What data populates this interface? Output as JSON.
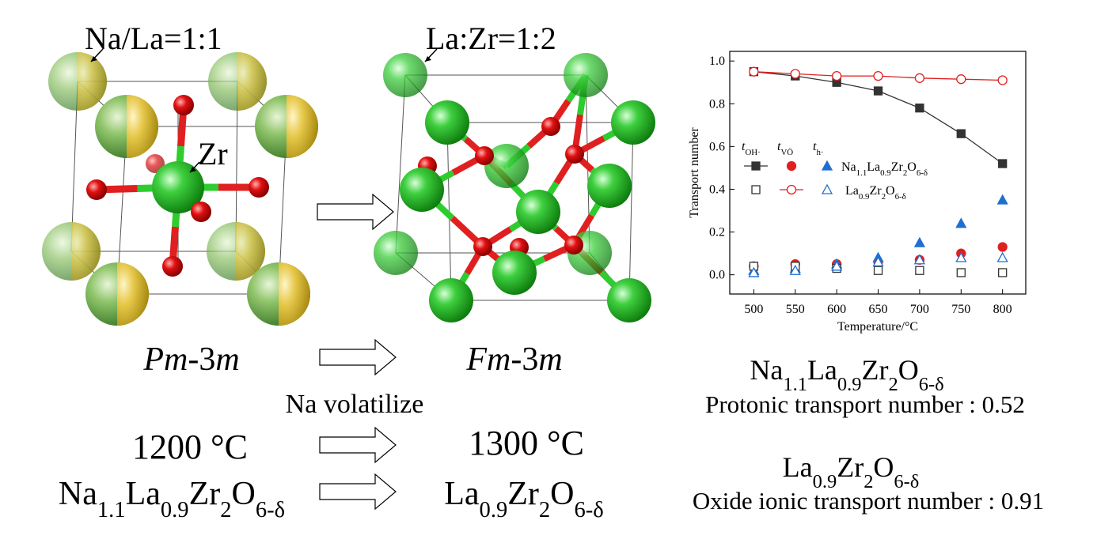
{
  "structures": {
    "left_label": "Na/La=1:1",
    "center_label": "Zr",
    "right_label": "La:Zr=1:2",
    "left_group": [
      "Pm",
      "-3",
      "m"
    ],
    "right_group": [
      "Fm",
      "-3",
      "m"
    ]
  },
  "process": {
    "note": "Na volatilize",
    "temp_before": "1200 °C",
    "temp_after": "1300 °C",
    "formula_before": [
      "Na",
      "1.1",
      "La",
      "0.9",
      "Zr",
      "2",
      "O",
      "6-δ"
    ],
    "formula_after": [
      "La",
      "0.9",
      "Zr",
      "2",
      "O",
      "6-δ"
    ]
  },
  "results": [
    {
      "formula": [
        "Na",
        "1.1",
        "La",
        "0.9",
        "Zr",
        "2",
        "O",
        "6-δ"
      ],
      "text": "Protonic transport number : 0.52"
    },
    {
      "formula": [
        "La",
        "0.9",
        "Zr",
        "2",
        "O",
        "6-δ"
      ],
      "text": "Oxide ionic transport number : 0.91"
    }
  ],
  "chart_data": {
    "type": "scatter",
    "x_label": "Temperature/°C",
    "y_label": "Transport number",
    "x": [
      500,
      550,
      600,
      650,
      700,
      750,
      800
    ],
    "xlim": [
      471,
      828
    ],
    "ylim": [
      -0.09,
      1.045
    ],
    "xticks": [
      500,
      550,
      600,
      650,
      700,
      750,
      800
    ],
    "yticks": [
      {
        "value": 0,
        "label": "0.0"
      },
      {
        "value": 0.2,
        "label": "0.2"
      },
      {
        "value": 0.4,
        "label": "0.4"
      },
      {
        "value": 0.6,
        "label": "0.6"
      },
      {
        "value": 0.8,
        "label": "0.8"
      },
      {
        "value": 1,
        "label": "1.0"
      }
    ],
    "legend": {
      "columns": [
        [
          "t",
          "OH·"
        ],
        [
          "t",
          "VÖ"
        ],
        [
          "t",
          "h·"
        ]
      ],
      "rows": [
        [
          "Na",
          "1.1",
          "La",
          "0.9",
          "Zr",
          "2",
          "O",
          "6-δ"
        ],
        [
          "La",
          "0.9",
          "Zr",
          "2",
          "O",
          "6-δ"
        ]
      ]
    },
    "series": [
      {
        "color": "#333333",
        "marker": "square",
        "filled": true,
        "line": true,
        "values": [
          0.95,
          0.93,
          0.9,
          0.86,
          0.78,
          0.66,
          0.52
        ]
      },
      {
        "color": "#e02020",
        "marker": "circle",
        "filled": true,
        "line": false,
        "values": [
          0.04,
          0.05,
          0.05,
          0.06,
          0.07,
          0.1,
          0.13
        ]
      },
      {
        "color": "#1f6fd0",
        "marker": "triangle",
        "filled": true,
        "line": false,
        "values": [
          0.02,
          0.03,
          0.05,
          0.08,
          0.15,
          0.24,
          0.35
        ]
      },
      {
        "color": "#333333",
        "marker": "square",
        "filled": false,
        "line": false,
        "values": [
          0.04,
          0.04,
          0.03,
          0.02,
          0.02,
          0.01,
          0.01
        ]
      },
      {
        "color": "#e02020",
        "marker": "circle",
        "filled": false,
        "line": true,
        "values": [
          0.95,
          0.94,
          0.93,
          0.93,
          0.92,
          0.915,
          0.91
        ]
      },
      {
        "color": "#1f6fd0",
        "marker": "triangle",
        "filled": false,
        "line": false,
        "values": [
          0.01,
          0.02,
          0.04,
          0.06,
          0.07,
          0.08,
          0.08
        ]
      }
    ]
  }
}
